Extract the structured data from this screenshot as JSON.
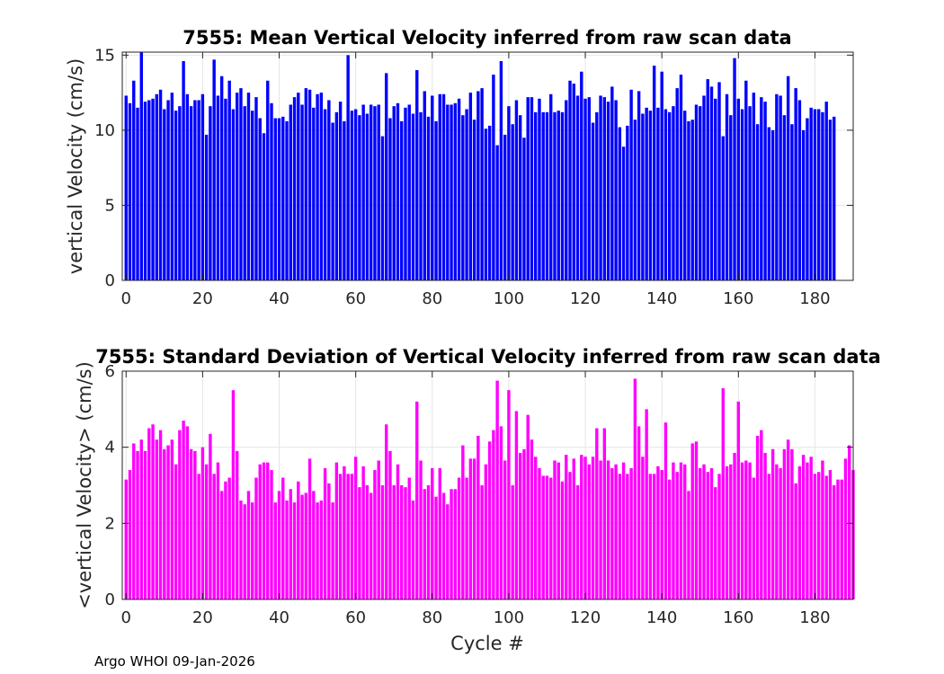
{
  "footer": "Argo WHOI 09-Jan-2026",
  "chart_data": [
    {
      "type": "bar",
      "title": "7555: Mean Vertical Velocity inferred from raw scan data",
      "xlabel": "",
      "ylabel": "vertical Velocity (cm/s)",
      "color": "#0000ff",
      "xlim": [
        -1,
        190
      ],
      "ylim": [
        0,
        15.2
      ],
      "xticks": [
        0,
        20,
        40,
        60,
        80,
        100,
        120,
        140,
        160,
        180
      ],
      "yticks": [
        0,
        5,
        10,
        15
      ],
      "grid": true,
      "x_start": 0,
      "values": [
        12.3,
        11.8,
        13.3,
        11.5,
        15.2,
        11.9,
        12.0,
        12.1,
        12.4,
        12.7,
        11.4,
        12.0,
        12.5,
        11.3,
        11.6,
        14.6,
        12.4,
        11.6,
        12.0,
        12.0,
        12.4,
        9.7,
        11.6,
        14.7,
        12.3,
        13.6,
        12.1,
        13.3,
        11.4,
        12.5,
        12.8,
        11.6,
        12.5,
        11.3,
        12.2,
        10.8,
        9.8,
        13.3,
        11.8,
        10.8,
        10.8,
        10.9,
        10.6,
        11.7,
        12.2,
        12.5,
        11.7,
        12.8,
        12.7,
        11.5,
        12.4,
        12.5,
        11.4,
        12.0,
        10.5,
        11.2,
        11.9,
        10.6,
        15.0,
        11.3,
        11.4,
        11.0,
        11.7,
        11.1,
        11.7,
        11.6,
        11.7,
        9.6,
        13.8,
        10.8,
        11.6,
        11.8,
        10.6,
        11.5,
        11.7,
        11.1,
        14.0,
        11.2,
        12.6,
        10.9,
        12.3,
        10.6,
        12.4,
        12.4,
        11.7,
        11.7,
        11.8,
        12.1,
        11.0,
        11.4,
        12.5,
        10.7,
        12.6,
        12.8,
        10.1,
        10.3,
        13.7,
        9.0,
        14.6,
        9.7,
        11.6,
        10.4,
        12.0,
        11.0,
        9.5,
        12.2,
        12.2,
        11.2,
        12.1,
        11.2,
        11.2,
        12.4,
        11.2,
        11.3,
        11.2,
        12.0,
        13.3,
        13.1,
        12.3,
        13.9,
        12.1,
        12.2,
        10.5,
        11.2,
        12.3,
        12.2,
        11.9,
        12.9,
        12.0,
        10.2,
        8.9,
        10.3,
        12.7,
        10.7,
        12.6,
        11.1,
        11.5,
        11.3,
        14.3,
        11.5,
        13.9,
        11.4,
        11.2,
        11.6,
        12.8,
        13.7,
        11.3,
        10.6,
        10.7,
        11.7,
        11.6,
        12.3,
        13.4,
        12.9,
        12.1,
        13.2,
        9.6,
        12.4,
        11.0,
        14.8,
        12.1,
        11.4,
        13.3,
        11.6,
        12.5,
        10.4,
        12.2,
        11.9,
        10.2,
        10.0,
        12.4,
        12.3,
        11.0,
        13.6,
        10.4,
        12.8,
        12.0,
        10.0,
        10.8,
        11.5,
        11.4,
        11.4,
        11.2,
        11.9,
        10.7,
        10.9
      ]
    },
    {
      "type": "bar",
      "title": "7555: Standard Deviation of Vertical Velocity inferred from raw scan data",
      "xlabel": "Cycle #",
      "ylabel": "<vertical Velocity> (cm/s)",
      "color": "#ff00ff",
      "xlim": [
        -1,
        190
      ],
      "ylim": [
        0,
        6
      ],
      "xticks": [
        0,
        20,
        40,
        60,
        80,
        100,
        120,
        140,
        160,
        180
      ],
      "yticks": [
        0,
        2,
        4,
        6
      ],
      "grid": true,
      "x_start": 0,
      "values": [
        3.15,
        3.4,
        4.1,
        3.9,
        4.2,
        3.9,
        4.5,
        4.6,
        4.2,
        4.45,
        3.95,
        4.05,
        4.2,
        3.55,
        4.45,
        4.7,
        4.55,
        3.95,
        3.9,
        3.3,
        4.0,
        3.55,
        4.35,
        3.3,
        3.6,
        2.85,
        3.1,
        3.2,
        5.5,
        3.9,
        2.6,
        2.5,
        2.85,
        2.55,
        3.2,
        3.55,
        3.6,
        3.6,
        3.4,
        2.55,
        2.85,
        3.2,
        2.6,
        2.9,
        2.55,
        3.1,
        2.75,
        2.8,
        3.7,
        2.85,
        2.55,
        2.6,
        3.45,
        3.05,
        2.55,
        3.6,
        3.3,
        3.5,
        3.3,
        3.3,
        3.75,
        2.95,
        3.5,
        3.0,
        2.8,
        3.4,
        3.65,
        3.0,
        4.6,
        3.9,
        3.0,
        3.55,
        3.0,
        2.95,
        3.2,
        2.6,
        5.2,
        3.65,
        2.9,
        3.0,
        3.45,
        2.7,
        3.45,
        2.8,
        2.5,
        2.9,
        2.9,
        3.2,
        4.05,
        3.2,
        3.7,
        3.7,
        4.3,
        3.0,
        3.55,
        4.15,
        4.45,
        5.75,
        4.55,
        3.65,
        5.5,
        3.0,
        4.95,
        3.85,
        3.95,
        4.85,
        4.2,
        3.75,
        3.45,
        3.25,
        3.25,
        3.2,
        3.65,
        3.6,
        3.1,
        3.8,
        3.35,
        3.7,
        3.0,
        3.8,
        3.75,
        3.55,
        3.75,
        4.5,
        3.65,
        4.5,
        3.65,
        3.45,
        3.55,
        3.3,
        3.6,
        3.3,
        3.45,
        5.8,
        4.55,
        3.75,
        5.0,
        3.3,
        3.3,
        3.5,
        3.4,
        4.65,
        3.15,
        3.6,
        3.35,
        3.6,
        3.55,
        2.85,
        4.1,
        4.15,
        3.45,
        3.55,
        3.35,
        3.45,
        2.95,
        3.3,
        5.55,
        3.5,
        3.55,
        3.85,
        5.2,
        3.6,
        3.65,
        3.6,
        3.2,
        4.3,
        4.45,
        3.85,
        3.3,
        3.95,
        3.55,
        3.45,
        3.95,
        4.2,
        3.95,
        3.05,
        3.5,
        3.8,
        3.6,
        3.75,
        3.3,
        3.35,
        3.65,
        3.25,
        3.4,
        3.0,
        3.15,
        3.15,
        3.7,
        4.05,
        3.4
      ]
    }
  ]
}
